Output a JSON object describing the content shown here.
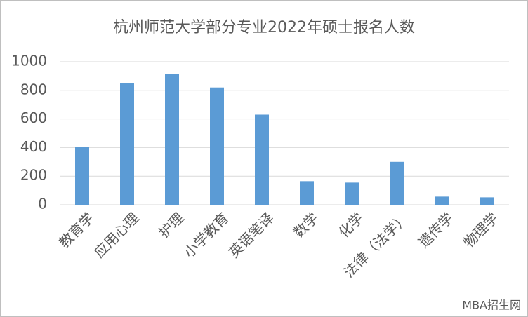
{
  "chart_data": {
    "type": "bar",
    "title": "杭州师范大学部分专业2022年硕士报名人数",
    "categories": [
      "教育学",
      "应用心理",
      "护理",
      "小学教育",
      "英语笔译",
      "数学",
      "化学",
      "法律（法学）",
      "遗传学",
      "物理学"
    ],
    "values": [
      405,
      848,
      912,
      820,
      630,
      165,
      155,
      300,
      57,
      52
    ],
    "color": "#5b9bd5",
    "ylim": [
      0,
      1000
    ],
    "yticks": [
      0,
      200,
      400,
      600,
      800,
      1000
    ],
    "grid": true,
    "watermark": "MBA招生网"
  }
}
